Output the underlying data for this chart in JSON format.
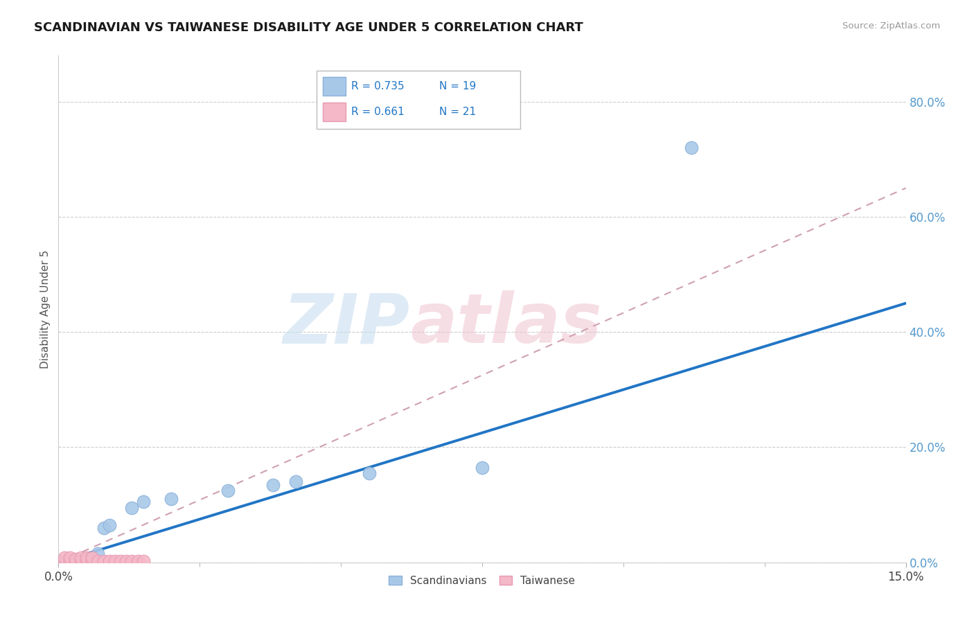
{
  "title": "SCANDINAVIAN VS TAIWANESE DISABILITY AGE UNDER 5 CORRELATION CHART",
  "source": "Source: ZipAtlas.com",
  "ylabel": "Disability Age Under 5",
  "watermark_zip": "ZIP",
  "watermark_atlas": "atlas",
  "legend_blue_r": "R = 0.735",
  "legend_blue_n": "N = 19",
  "legend_pink_r": "R = 0.661",
  "legend_pink_n": "N = 21",
  "legend_label_blue": "Scandinavians",
  "legend_label_pink": "Taiwanese",
  "blue_scatter_color": "#a8c8e8",
  "pink_scatter_color": "#f4b8c8",
  "trend_blue_color": "#2175c5",
  "trend_pink_color": "#d0a0b0",
  "ytick_label_color": "#5599cc",
  "ytick_labels": [
    "0.0%",
    "20.0%",
    "40.0%",
    "60.0%",
    "80.0%"
  ],
  "ytick_values": [
    0.0,
    0.2,
    0.4,
    0.6,
    0.8
  ],
  "xlim": [
    0.0,
    0.15
  ],
  "ylim": [
    0.0,
    0.88
  ],
  "scan_x": [
    0.0005,
    0.001,
    0.002,
    0.003,
    0.004,
    0.005,
    0.006,
    0.007,
    0.008,
    0.009,
    0.013,
    0.015,
    0.02,
    0.03,
    0.038,
    0.042,
    0.055,
    0.075,
    0.112
  ],
  "scan_y": [
    0.002,
    0.002,
    0.002,
    0.002,
    0.002,
    0.002,
    0.002,
    0.015,
    0.06,
    0.065,
    0.095,
    0.105,
    0.11,
    0.125,
    0.135,
    0.14,
    0.155,
    0.165,
    0.72
  ],
  "tai_x": [
    0.001,
    0.001,
    0.002,
    0.002,
    0.003,
    0.003,
    0.004,
    0.004,
    0.005,
    0.005,
    0.006,
    0.006,
    0.007,
    0.008,
    0.009,
    0.01,
    0.011,
    0.012,
    0.013,
    0.014,
    0.015
  ],
  "tai_y": [
    0.002,
    0.008,
    0.002,
    0.008,
    0.002,
    0.006,
    0.002,
    0.008,
    0.002,
    0.008,
    0.002,
    0.008,
    0.002,
    0.002,
    0.002,
    0.002,
    0.002,
    0.002,
    0.002,
    0.002,
    0.002
  ],
  "trend_blue_x0": 0.0,
  "trend_blue_y0": 0.0,
  "trend_blue_x1": 0.15,
  "trend_blue_y1": 0.45,
  "trend_pink_x0": 0.0,
  "trend_pink_y0": 0.0,
  "trend_pink_x1": 0.15,
  "trend_pink_y1": 0.65
}
